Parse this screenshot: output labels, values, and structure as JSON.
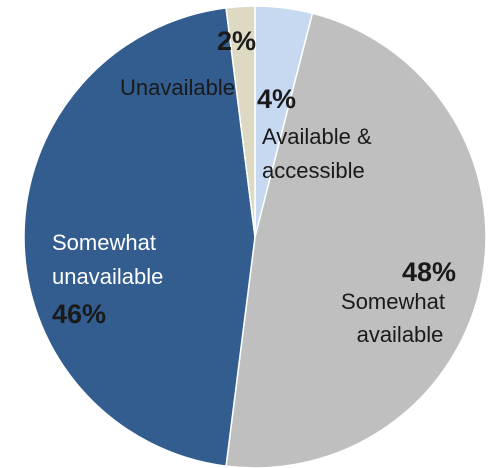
{
  "chart_data": {
    "type": "pie",
    "title": "",
    "slices": [
      {
        "label": "Available & accessible",
        "label_lines": [
          "Available &",
          "accessible"
        ],
        "value": 4,
        "display": "4%",
        "color": "#c6d9f1"
      },
      {
        "label": "Somewhat available",
        "label_lines": [
          "Somewhat",
          "available"
        ],
        "value": 48,
        "display": "48%",
        "color": "#bfbfbf"
      },
      {
        "label": "Somewhat unavailable",
        "label_lines": [
          "Somewhat",
          "unavailable"
        ],
        "value": 46,
        "display": "46%",
        "color": "#325d8e"
      },
      {
        "label": "Unavailable",
        "label_lines": [
          "Unavailable"
        ],
        "value": 2,
        "display": "2%",
        "color": "#ddd9c3"
      }
    ],
    "start_angle_deg": 0,
    "direction": "clockwise",
    "legend": "none"
  }
}
